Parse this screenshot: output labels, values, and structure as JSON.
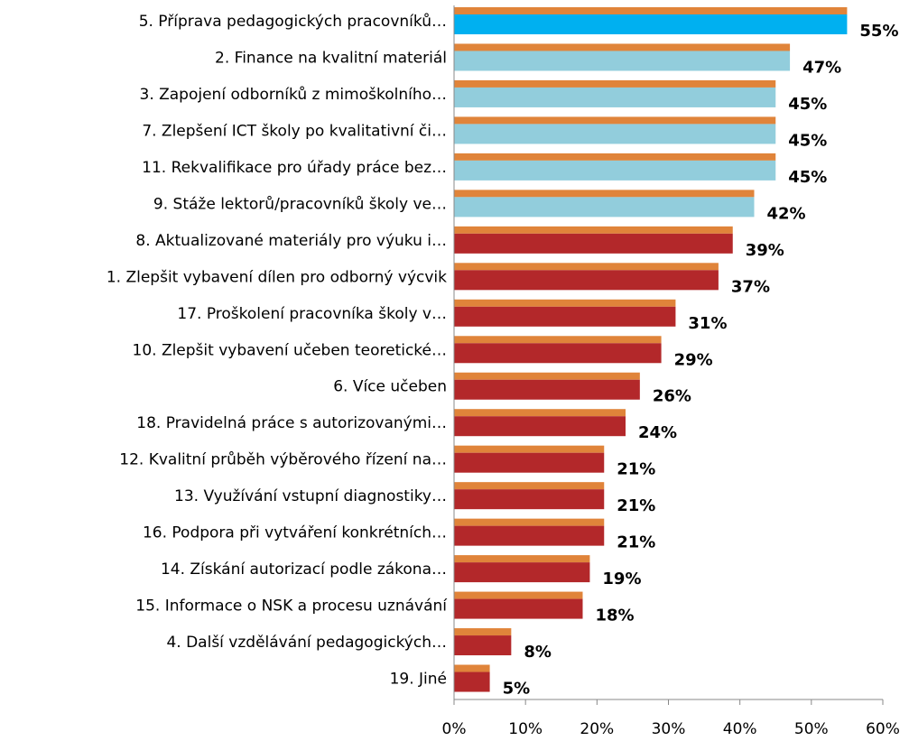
{
  "chart_data": {
    "type": "bar",
    "orientation": "horizontal",
    "categories": [
      "5. Příprava pedagogických pracovníků…",
      "2. Finance na kvalitní materiál",
      "3. Zapojení odborníků z mimoškolního…",
      "7. Zlepšení ICT školy po kvalitativní či…",
      "11. Rekvalifikace pro úřady práce bez…",
      "9. Stáže lektorů/pracovníků školy ve…",
      "8. Aktualizované materiály pro výuku i…",
      "1. Zlepšit vybavení dílen pro odborný výcvik",
      "17. Proškolení pracovníka školy v…",
      "10. Zlepšit vybavení učeben teoretické…",
      "6. Více učeben",
      "18. Pravidelná práce s autorizovanými…",
      "12. Kvalitní průběh výběrového řízení na…",
      "13. Využívání vstupní diagnostiky…",
      "16. Podpora při vytváření konkrétních…",
      "14. Získání autorizací podle zákona…",
      "15. Informace o NSK a procesu uznávání",
      "4. Další vzdělávání pedagogických…",
      "19. Jiné"
    ],
    "series": [
      {
        "color": "#e0843a",
        "values": [
          55,
          47,
          45,
          45,
          45,
          42,
          39,
          37,
          31,
          29,
          26,
          24,
          21,
          21,
          21,
          19,
          18,
          8,
          5
        ]
      },
      {
        "colors": [
          "#00b0f0",
          "#92cddc",
          "#92cddc",
          "#92cddc",
          "#92cddc",
          "#92cddc",
          "#b3282a",
          "#b3282a",
          "#b3282a",
          "#b3282a",
          "#b3282a",
          "#b3282a",
          "#b3282a",
          "#b3282a",
          "#b3282a",
          "#b3282a",
          "#b3282a",
          "#b3282a",
          "#b3282a"
        ],
        "values": [
          55,
          47,
          45,
          45,
          45,
          42,
          39,
          37,
          31,
          29,
          26,
          24,
          21,
          21,
          21,
          19,
          18,
          8,
          5
        ],
        "value_labels": [
          "55%",
          "47%",
          "45%",
          "45%",
          "45%",
          "42%",
          "39%",
          "37%",
          "31%",
          "29%",
          "26%",
          "24%",
          "21%",
          "21%",
          "21%",
          "19%",
          "18%",
          "8%",
          "5%"
        ]
      }
    ],
    "xlim": [
      0,
      60
    ],
    "xticks": [
      {
        "value": 0,
        "label": "0%"
      },
      {
        "value": 10,
        "label": "10%"
      },
      {
        "value": 20,
        "label": "20%"
      },
      {
        "value": 30,
        "label": "30%"
      },
      {
        "value": 40,
        "label": "40%"
      },
      {
        "value": 50,
        "label": "50%"
      },
      {
        "value": 60,
        "label": "60%"
      }
    ]
  }
}
